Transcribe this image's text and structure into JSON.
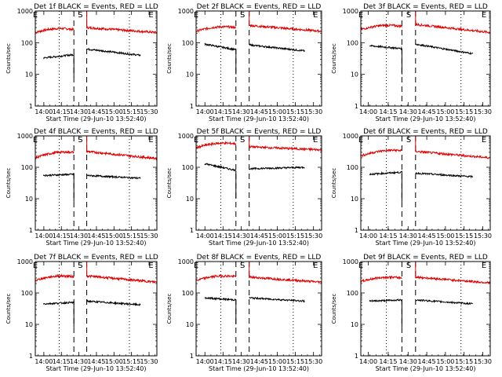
{
  "colors": {
    "events": "#000000",
    "lld": "#e00000",
    "axis": "#000000"
  },
  "chart_data": {
    "type": "line",
    "ylabel": "Counts/sec",
    "xlabel": "Start Time (29-Jun-10 13:52:40)",
    "yscale": "log",
    "ylim": [
      1,
      1000
    ],
    "yticks": [
      {
        "v": 1,
        "label": "1"
      },
      {
        "v": 10,
        "label": "10"
      },
      {
        "v": 100,
        "label": "100"
      },
      {
        "v": 1000,
        "label": "1000"
      }
    ],
    "xlim_min": [
      0,
      104
    ],
    "markers": [
      {
        "label": "E",
        "t": 0
      },
      {
        "label": "S",
        "t": 38.5
      },
      {
        "label": "E",
        "t": 99
      }
    ],
    "panels": [
      {
        "title": "Det 1f BLACK = Events, RED = LLD",
        "xticks": [
          {
            "t": 7.3,
            "label": "14:00"
          },
          {
            "t": 22.3,
            "label": "14:15"
          },
          {
            "t": 37.3,
            "label": "14:30"
          },
          {
            "t": 52.3,
            "label": "14:45"
          },
          {
            "t": 67.3,
            "label": "15:00"
          },
          {
            "t": 82.3,
            "label": "15:15"
          },
          {
            "t": 97.3,
            "label": "15:30"
          }
        ],
        "lines": [
          {
            "t": 20.5,
            "style": "dotted"
          },
          {
            "t": 33,
            "style": "dashed"
          },
          {
            "t": 44,
            "style": "dashed"
          },
          {
            "t": 80.5,
            "style": "dotted"
          }
        ],
        "events": [
          {
            "t0": 7,
            "t1": 33,
            "v0": 33,
            "v1": 42,
            "dip": 8
          },
          {
            "t0": 44,
            "t1": 90,
            "v0": 63,
            "v1": 40
          }
        ],
        "lld": [
          {
            "t0": 0,
            "t1": 33,
            "v0": 210,
            "v1": 260,
            "hump": 40
          },
          {
            "t0": 44,
            "t1": 104,
            "v0": 300,
            "v1": 210,
            "spike": 1000
          }
        ]
      },
      {
        "title": "Det 2f BLACK = Events, RED = LLD",
        "xticks": [
          {
            "t": 7.3,
            "label": "14:00"
          },
          {
            "t": 22.3,
            "label": "14:15"
          },
          {
            "t": 37.3,
            "label": "14:30"
          },
          {
            "t": 52.3,
            "label": "14:45"
          },
          {
            "t": 67.3,
            "label": "15:00"
          },
          {
            "t": 82.3,
            "label": "15:15"
          },
          {
            "t": 97.3,
            "label": "15:30"
          }
        ],
        "lines": [
          {
            "t": 20.5,
            "style": "dotted"
          },
          {
            "t": 33,
            "style": "dashed"
          },
          {
            "t": 44,
            "style": "dashed"
          },
          {
            "t": 80.5,
            "style": "dotted"
          }
        ],
        "events": [
          {
            "t0": 7,
            "t1": 33,
            "v0": 90,
            "v1": 60,
            "dip": 10
          },
          {
            "t0": 44,
            "t1": 90,
            "v0": 85,
            "v1": 55
          }
        ],
        "lld": [
          {
            "t0": 0,
            "t1": 33,
            "v0": 230,
            "v1": 300,
            "hump": 40
          },
          {
            "t0": 44,
            "t1": 104,
            "v0": 350,
            "v1": 230,
            "spike": 1000
          }
        ]
      },
      {
        "title": "Det 3f BLACK = Events, RED = LLD",
        "xticks": [
          {
            "t": 6,
            "label": "14:00"
          },
          {
            "t": 22,
            "label": "14:15"
          },
          {
            "t": 38,
            "label": "14:30"
          },
          {
            "t": 53,
            "label": "14:45"
          },
          {
            "t": 68,
            "label": "15:00"
          },
          {
            "t": 83,
            "label": "15:15"
          },
          {
            "t": 98,
            "label": "15:30"
          }
        ],
        "lines": [
          {
            "t": 20.5,
            "style": "dotted"
          },
          {
            "t": 33,
            "style": "dashed"
          },
          {
            "t": 44,
            "style": "dashed"
          },
          {
            "t": 80.5,
            "style": "dotted"
          }
        ],
        "events": [
          {
            "t0": 7,
            "t1": 33,
            "v0": 80,
            "v1": 65,
            "dip": 10
          },
          {
            "t0": 44,
            "t1": 90,
            "v0": 90,
            "v1": 45
          }
        ],
        "lld": [
          {
            "t0": 0,
            "t1": 33,
            "v0": 260,
            "v1": 330,
            "hump": 40
          },
          {
            "t0": 44,
            "t1": 104,
            "v0": 380,
            "v1": 210,
            "spike": 1000
          }
        ]
      },
      {
        "title": "Det 4f BLACK = Events, RED = LLD",
        "xticks": [
          {
            "t": 7.3,
            "label": "14:00"
          },
          {
            "t": 22.3,
            "label": "14:15"
          },
          {
            "t": 37.3,
            "label": "14:30"
          },
          {
            "t": 52.3,
            "label": "14:45"
          },
          {
            "t": 67.3,
            "label": "15:00"
          },
          {
            "t": 82.3,
            "label": "15:15"
          },
          {
            "t": 97.3,
            "label": "15:30"
          }
        ],
        "lines": [
          {
            "t": 20.5,
            "style": "dotted"
          },
          {
            "t": 33,
            "style": "dashed"
          },
          {
            "t": 44,
            "style": "dashed"
          },
          {
            "t": 80.5,
            "style": "dotted"
          }
        ],
        "events": [
          {
            "t0": 7,
            "t1": 33,
            "v0": 55,
            "v1": 60,
            "dip": 8
          },
          {
            "t0": 44,
            "t1": 90,
            "v0": 55,
            "v1": 45
          }
        ],
        "lld": [
          {
            "t0": 0,
            "t1": 33,
            "v0": 200,
            "v1": 300,
            "hump": 40
          },
          {
            "t0": 44,
            "t1": 104,
            "v0": 320,
            "v1": 190,
            "spike": 1000
          }
        ]
      },
      {
        "title": "Det 5f BLACK = Events, RED = LLD",
        "xticks": [
          {
            "t": 7.3,
            "label": "14:00"
          },
          {
            "t": 22.3,
            "label": "14:15"
          },
          {
            "t": 37.3,
            "label": "14:30"
          },
          {
            "t": 52.3,
            "label": "14:45"
          },
          {
            "t": 67.3,
            "label": "15:00"
          },
          {
            "t": 82.3,
            "label": "15:15"
          },
          {
            "t": 97.3,
            "label": "15:30"
          }
        ],
        "lines": [
          {
            "t": 20.5,
            "style": "dotted"
          },
          {
            "t": 33,
            "style": "dashed"
          },
          {
            "t": 44,
            "style": "dashed"
          },
          {
            "t": 80.5,
            "style": "dotted"
          }
        ],
        "events": [
          {
            "t0": 7,
            "t1": 33,
            "v0": 130,
            "v1": 80,
            "dip": 10
          },
          {
            "t0": 44,
            "t1": 90,
            "v0": 90,
            "v1": 100
          }
        ],
        "lld": [
          {
            "t0": 0,
            "t1": 33,
            "v0": 420,
            "v1": 560,
            "hump": 40
          },
          {
            "t0": 44,
            "t1": 104,
            "v0": 450,
            "v1": 360,
            "spike": 1000
          }
        ]
      },
      {
        "title": "Det 6f BLACK = Events, RED = LLD",
        "xticks": [
          {
            "t": 6,
            "label": "14:00"
          },
          {
            "t": 22,
            "label": "14:15"
          },
          {
            "t": 38,
            "label": "14:30"
          },
          {
            "t": 53,
            "label": "14:45"
          },
          {
            "t": 68,
            "label": "15:00"
          },
          {
            "t": 83,
            "label": "15:15"
          },
          {
            "t": 98,
            "label": "15:30"
          }
        ],
        "lines": [
          {
            "t": 20.5,
            "style": "dotted"
          },
          {
            "t": 33,
            "style": "dashed"
          },
          {
            "t": 44,
            "style": "dashed"
          },
          {
            "t": 80.5,
            "style": "dotted"
          }
        ],
        "events": [
          {
            "t0": 7,
            "t1": 33,
            "v0": 60,
            "v1": 70,
            "dip": 8
          },
          {
            "t0": 44,
            "t1": 90,
            "v0": 65,
            "v1": 50
          }
        ],
        "lld": [
          {
            "t0": 0,
            "t1": 33,
            "v0": 230,
            "v1": 340,
            "hump": 40
          },
          {
            "t0": 44,
            "t1": 104,
            "v0": 320,
            "v1": 200,
            "spike": 1000
          }
        ]
      },
      {
        "title": "Det 7f BLACK = Events, RED = LLD",
        "xticks": [
          {
            "t": 7.3,
            "label": "14:00"
          },
          {
            "t": 22.3,
            "label": "14:15"
          },
          {
            "t": 37.3,
            "label": "14:30"
          },
          {
            "t": 52.3,
            "label": "14:45"
          },
          {
            "t": 67.3,
            "label": "15:00"
          },
          {
            "t": 82.3,
            "label": "15:15"
          },
          {
            "t": 97.3,
            "label": "15:30"
          }
        ],
        "lines": [
          {
            "t": 20.5,
            "style": "dotted"
          },
          {
            "t": 33,
            "style": "dashed"
          },
          {
            "t": 44,
            "style": "dashed"
          },
          {
            "t": 80.5,
            "style": "dotted"
          }
        ],
        "events": [
          {
            "t0": 7,
            "t1": 33,
            "v0": 45,
            "v1": 50,
            "dip": 8
          },
          {
            "t0": 44,
            "t1": 90,
            "v0": 55,
            "v1": 42
          }
        ],
        "lld": [
          {
            "t0": 0,
            "t1": 33,
            "v0": 250,
            "v1": 330,
            "hump": 40
          },
          {
            "t0": 44,
            "t1": 104,
            "v0": 350,
            "v1": 220,
            "spike": 1000
          }
        ]
      },
      {
        "title": "Det 8f BLACK = Events, RED = LLD",
        "xticks": [
          {
            "t": 7.3,
            "label": "14:00"
          },
          {
            "t": 22.3,
            "label": "14:15"
          },
          {
            "t": 37.3,
            "label": "14:30"
          },
          {
            "t": 52.3,
            "label": "14:45"
          },
          {
            "t": 67.3,
            "label": "15:00"
          },
          {
            "t": 82.3,
            "label": "15:15"
          },
          {
            "t": 97.3,
            "label": "15:30"
          }
        ],
        "lines": [
          {
            "t": 20.5,
            "style": "dotted"
          },
          {
            "t": 33,
            "style": "dashed"
          },
          {
            "t": 44,
            "style": "dashed"
          },
          {
            "t": 80.5,
            "style": "dotted"
          }
        ],
        "events": [
          {
            "t0": 7,
            "t1": 33,
            "v0": 70,
            "v1": 60,
            "dip": 10
          },
          {
            "t0": 44,
            "t1": 90,
            "v0": 70,
            "v1": 55
          }
        ],
        "lld": [
          {
            "t0": 0,
            "t1": 33,
            "v0": 250,
            "v1": 330,
            "hump": 40
          },
          {
            "t0": 44,
            "t1": 104,
            "v0": 320,
            "v1": 220,
            "spike": 1000
          }
        ]
      },
      {
        "title": "Det 9f BLACK = Events, RED = LLD",
        "xticks": [
          {
            "t": 6,
            "label": "14:00"
          },
          {
            "t": 22,
            "label": "14:15"
          },
          {
            "t": 38,
            "label": "14:30"
          },
          {
            "t": 53,
            "label": "14:45"
          },
          {
            "t": 68,
            "label": "15:00"
          },
          {
            "t": 83,
            "label": "15:15"
          },
          {
            "t": 98,
            "label": "15:30"
          }
        ],
        "lines": [
          {
            "t": 20.5,
            "style": "dotted"
          },
          {
            "t": 33,
            "style": "dashed"
          },
          {
            "t": 44,
            "style": "dashed"
          },
          {
            "t": 80.5,
            "style": "dotted"
          }
        ],
        "events": [
          {
            "t0": 7,
            "t1": 33,
            "v0": 55,
            "v1": 60,
            "dip": 8
          },
          {
            "t0": 44,
            "t1": 90,
            "v0": 60,
            "v1": 45
          }
        ],
        "lld": [
          {
            "t0": 0,
            "t1": 33,
            "v0": 230,
            "v1": 300,
            "hump": 40
          },
          {
            "t0": 44,
            "t1": 104,
            "v0": 320,
            "v1": 210,
            "spike": 1000
          }
        ]
      }
    ]
  }
}
